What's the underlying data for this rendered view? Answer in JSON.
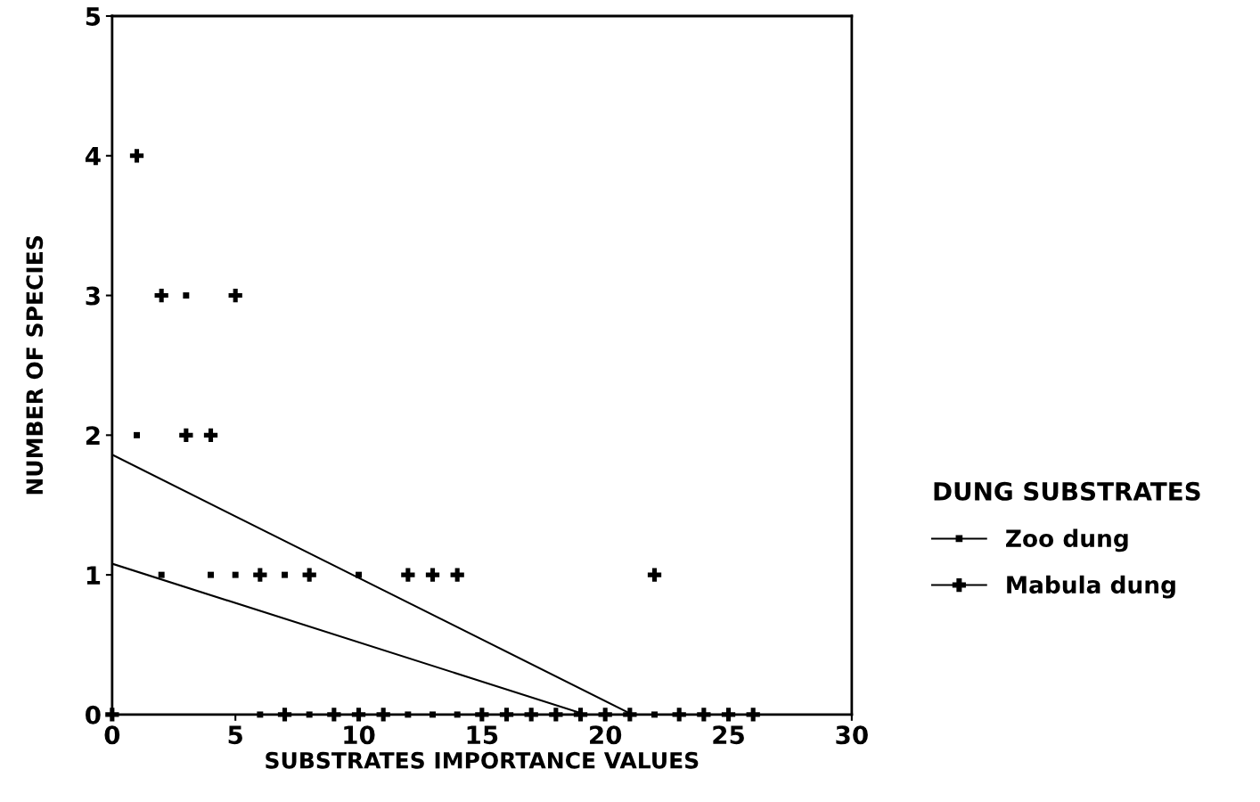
{
  "chart_data": {
    "type": "scatter",
    "xlabel": "SUBSTRATES IMPORTANCE VALUES",
    "ylabel": "NUMBER OF SPECIES",
    "legend_title": "DUNG SUBSTRATES",
    "legend": "right",
    "grid": false,
    "xlim": [
      0,
      30
    ],
    "ylim": [
      0,
      5
    ],
    "xticks": [
      0,
      5,
      10,
      15,
      20,
      25,
      30
    ],
    "yticks": [
      0,
      1,
      2,
      3,
      4,
      5
    ],
    "series": [
      {
        "name": "Zoo dung",
        "color": "#000000",
        "marker": "square",
        "x": [
          1,
          3,
          2,
          4,
          5,
          7,
          10,
          6,
          8,
          12,
          13,
          14,
          22
        ],
        "values": [
          2,
          3,
          1,
          1,
          1,
          1,
          1,
          0,
          0,
          0,
          0,
          0,
          0
        ]
      },
      {
        "name": "Mabula dung",
        "color": "#000000",
        "marker": "cross",
        "x": [
          1,
          2,
          5,
          3,
          4,
          6,
          8,
          12,
          13,
          14,
          22,
          0,
          7,
          9,
          10,
          11,
          15,
          16,
          17,
          18,
          19,
          20,
          21,
          23,
          24,
          25,
          26
        ],
        "values": [
          4,
          3,
          3,
          2,
          2,
          1,
          1,
          1,
          1,
          1,
          1,
          0,
          0,
          0,
          0,
          0,
          0,
          0,
          0,
          0,
          0,
          0,
          0,
          0,
          0,
          0,
          0
        ]
      },
      {
        "type": "line",
        "color": "#000000",
        "x": [
          0,
          19.2
        ],
        "values": [
          1.08,
          0
        ]
      },
      {
        "type": "line",
        "color": "#000000",
        "x": [
          0,
          21.1
        ],
        "values": [
          1.86,
          0
        ]
      }
    ]
  }
}
